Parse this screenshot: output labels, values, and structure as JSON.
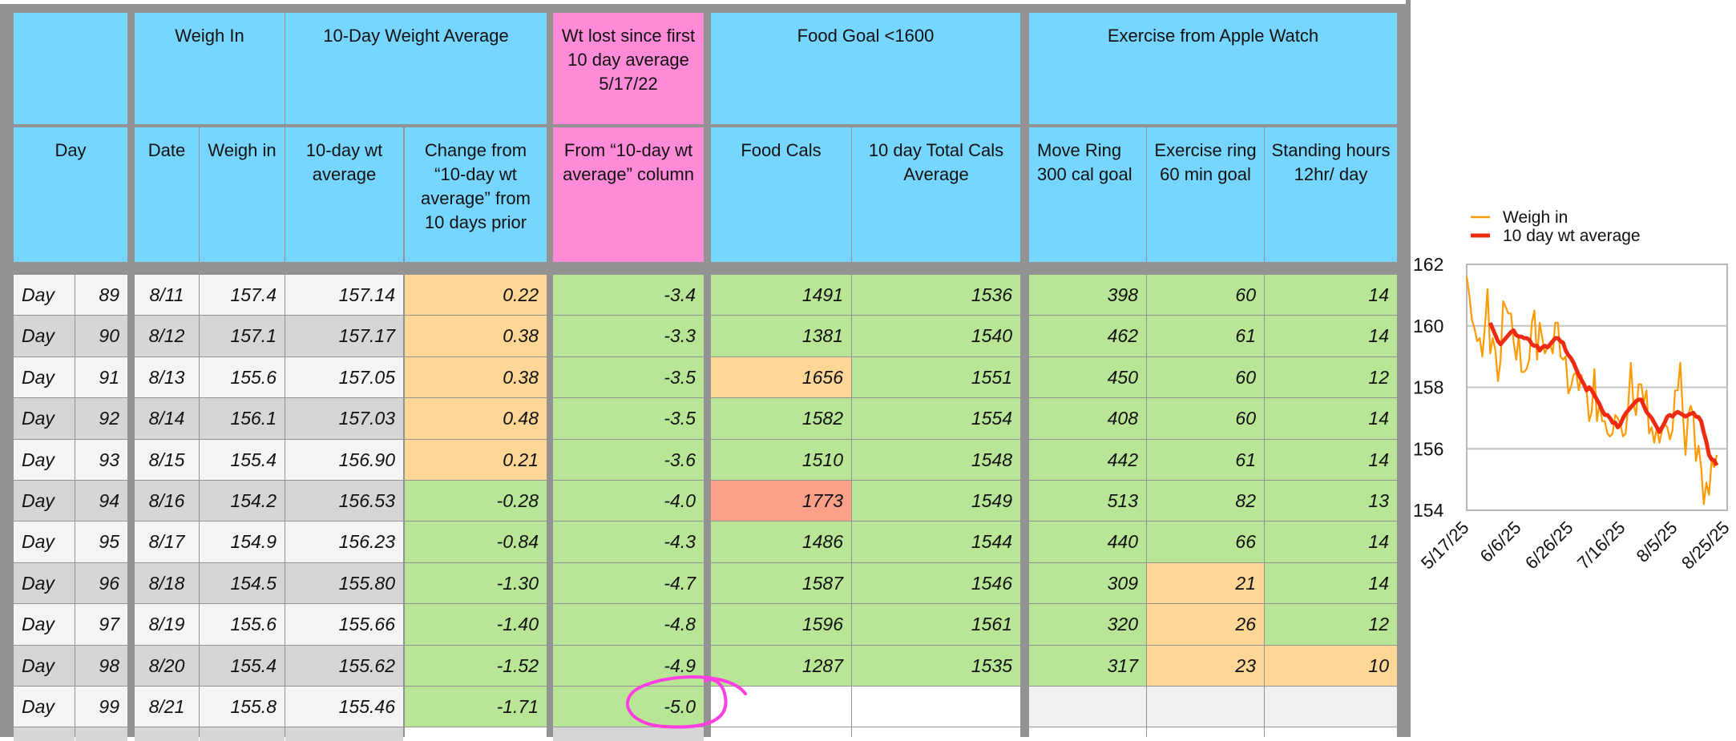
{
  "headers": {
    "group": {
      "day": "",
      "weigh_in": "Weigh In",
      "ten_day_avg": "10-Day Weight Average",
      "wt_lost": "Wt lost since first 10 day average 5/17/22",
      "food": "Food Goal <1600",
      "exercise": "Exercise from Apple Watch"
    },
    "columns": {
      "day": "Day",
      "date": "Date",
      "weigh": "Weigh in",
      "avg": "10-day wt average",
      "change": "Change from “10-day wt average” from 10 days prior",
      "lost": "From “10-day wt average” column",
      "food": "Food Cals",
      "total": "10 day Total Cals Average",
      "move": "Move Ring 300 cal goal",
      "exercise": "Exercise ring 60 min goal",
      "standing": "Standing hours 12hr/ day"
    }
  },
  "colors": {
    "header": "#76d6ff",
    "header_pink": "#ff8ad8",
    "good": "#b8e696",
    "warn": "#fed695",
    "bad": "#fca08a",
    "stripe_light": "#f4f4f4",
    "stripe_dark": "#d6d6d6",
    "annotation": "#ff3fe0"
  },
  "rows": [
    {
      "day_label": "Day",
      "day": "89",
      "date": "8/11",
      "weigh": "157.4",
      "avg": "157.14",
      "change": "0.22",
      "lost": "-3.4",
      "food": "1491",
      "total": "1536",
      "move": "398",
      "exercise": "60",
      "standing": "14",
      "hl": {
        "change": "warn"
      }
    },
    {
      "day_label": "Day",
      "day": "90",
      "date": "8/12",
      "weigh": "157.1",
      "avg": "157.17",
      "change": "0.38",
      "lost": "-3.3",
      "food": "1381",
      "total": "1540",
      "move": "462",
      "exercise": "61",
      "standing": "14",
      "hl": {
        "change": "warn"
      }
    },
    {
      "day_label": "Day",
      "day": "91",
      "date": "8/13",
      "weigh": "155.6",
      "avg": "157.05",
      "change": "0.38",
      "lost": "-3.5",
      "food": "1656",
      "total": "1551",
      "move": "450",
      "exercise": "60",
      "standing": "12",
      "hl": {
        "change": "warn",
        "food": "warn"
      }
    },
    {
      "day_label": "Day",
      "day": "92",
      "date": "8/14",
      "weigh": "156.1",
      "avg": "157.03",
      "change": "0.48",
      "lost": "-3.5",
      "food": "1582",
      "total": "1554",
      "move": "408",
      "exercise": "60",
      "standing": "14",
      "hl": {
        "change": "warn"
      }
    },
    {
      "day_label": "Day",
      "day": "93",
      "date": "8/15",
      "weigh": "155.4",
      "avg": "156.90",
      "change": "0.21",
      "lost": "-3.6",
      "food": "1510",
      "total": "1548",
      "move": "442",
      "exercise": "61",
      "standing": "14",
      "hl": {
        "change": "warn"
      }
    },
    {
      "day_label": "Day",
      "day": "94",
      "date": "8/16",
      "weigh": "154.2",
      "avg": "156.53",
      "change": "-0.28",
      "lost": "-4.0",
      "food": "1773",
      "total": "1549",
      "move": "513",
      "exercise": "82",
      "standing": "13",
      "hl": {
        "food": "bad"
      }
    },
    {
      "day_label": "Day",
      "day": "95",
      "date": "8/17",
      "weigh": "154.9",
      "avg": "156.23",
      "change": "-0.84",
      "lost": "-4.3",
      "food": "1486",
      "total": "1544",
      "move": "440",
      "exercise": "66",
      "standing": "14",
      "hl": {}
    },
    {
      "day_label": "Day",
      "day": "96",
      "date": "8/18",
      "weigh": "154.5",
      "avg": "155.80",
      "change": "-1.30",
      "lost": "-4.7",
      "food": "1587",
      "total": "1546",
      "move": "309",
      "exercise": "21",
      "standing": "14",
      "hl": {
        "exercise": "warn"
      }
    },
    {
      "day_label": "Day",
      "day": "97",
      "date": "8/19",
      "weigh": "155.6",
      "avg": "155.66",
      "change": "-1.40",
      "lost": "-4.8",
      "food": "1596",
      "total": "1561",
      "move": "320",
      "exercise": "26",
      "standing": "12",
      "hl": {
        "exercise": "warn"
      }
    },
    {
      "day_label": "Day",
      "day": "98",
      "date": "8/20",
      "weigh": "155.4",
      "avg": "155.62",
      "change": "-1.52",
      "lost": "-4.9",
      "food": "1287",
      "total": "1535",
      "move": "317",
      "exercise": "23",
      "standing": "10",
      "hl": {
        "exercise": "warn",
        "standing": "warn"
      }
    },
    {
      "day_label": "Day",
      "day": "99",
      "date": "8/21",
      "weigh": "155.8",
      "avg": "155.46",
      "change": "-1.71",
      "lost": "-5.0",
      "food": "",
      "total": "",
      "move": "",
      "exercise": "",
      "standing": "",
      "hl": {
        "food": "empty",
        "total": "empty",
        "move": "blank",
        "exercise": "blank",
        "standing": "blank"
      }
    }
  ],
  "chart_data": {
    "type": "line",
    "title": "",
    "xlabel": "",
    "ylabel": "",
    "x_start_date": "5/17/25",
    "x_unit": "days since 5/17/25",
    "xlim": [
      0,
      100
    ],
    "ylim": [
      154,
      162
    ],
    "yticks": [
      "154",
      "156",
      "158",
      "160",
      "162"
    ],
    "ytick_values": [
      154,
      156,
      158,
      160,
      162
    ],
    "xtick_labels": [
      "5/17/25",
      "6/6/25",
      "6/26/25",
      "7/16/25",
      "8/5/25",
      "8/25/25"
    ],
    "xtick_values": [
      0,
      20,
      40,
      60,
      80,
      100
    ],
    "grid": true,
    "legend_position": "top",
    "series": [
      {
        "name": "Weigh in",
        "color": "#ff9a00",
        "x_start": 0,
        "values": [
          161.6,
          161.0,
          160.2,
          159.9,
          159.5,
          159.6,
          159.0,
          160.0,
          161.2,
          159.1,
          159.6,
          159.2,
          158.2,
          158.9,
          160.8,
          160.6,
          160.4,
          160.4,
          159.5,
          158.9,
          159.7,
          158.5,
          158.5,
          158.6,
          158.9,
          160.1,
          160.5,
          158.9,
          160.1,
          159.6,
          159.1,
          159.3,
          159.4,
          159.1,
          160.1,
          160.1,
          159.0,
          158.9,
          159.0,
          157.8,
          158.0,
          158.4,
          158.5,
          157.9,
          158.4,
          158.0,
          157.9,
          156.9,
          157.2,
          158.6,
          156.9,
          157.5,
          156.9,
          156.9,
          156.5,
          156.4,
          156.5,
          157.1,
          157.0,
          156.8,
          156.4,
          156.5,
          157.4,
          158.8,
          157.5,
          157.1,
          158.1,
          158.1,
          157.5,
          157.9,
          156.5,
          156.7,
          156.2,
          156.7,
          156.2,
          156.6,
          156.8,
          156.7,
          156.3,
          156.6,
          157.9,
          157.9,
          158.8,
          157.1,
          155.8,
          157.1,
          157.4,
          157.1,
          155.6,
          156.1,
          155.4,
          154.2,
          154.9,
          154.5,
          155.6,
          155.4,
          155.8
        ]
      },
      {
        "name": "10 day wt average",
        "color": "#ee2a10",
        "x_start": 9,
        "values": [
          160.1,
          159.9,
          159.7,
          159.5,
          159.4,
          159.5,
          159.6,
          159.7,
          159.8,
          159.85,
          159.7,
          159.65,
          159.65,
          159.6,
          159.6,
          159.55,
          159.4,
          159.35,
          159.35,
          159.2,
          159.3,
          159.35,
          159.3,
          159.4,
          159.5,
          159.6,
          159.6,
          159.5,
          159.45,
          159.2,
          159.05,
          158.95,
          158.8,
          158.6,
          158.4,
          158.25,
          158.1,
          157.9,
          158.0,
          157.9,
          157.75,
          157.6,
          157.45,
          157.25,
          157.1,
          157.1,
          157.0,
          156.85,
          156.85,
          156.7,
          156.8,
          157.0,
          157.15,
          157.25,
          157.35,
          157.45,
          157.55,
          157.6,
          157.6,
          157.4,
          157.2,
          157.1,
          157.0,
          156.85,
          156.7,
          156.55,
          156.7,
          156.85,
          157.05,
          157.1,
          157.05,
          157.15,
          157.2,
          157.15,
          157.1,
          157.05,
          157.1,
          157.14,
          157.17,
          157.05,
          157.03,
          156.9,
          156.53,
          156.23,
          155.8,
          155.66,
          155.62,
          155.46
        ]
      }
    ]
  }
}
